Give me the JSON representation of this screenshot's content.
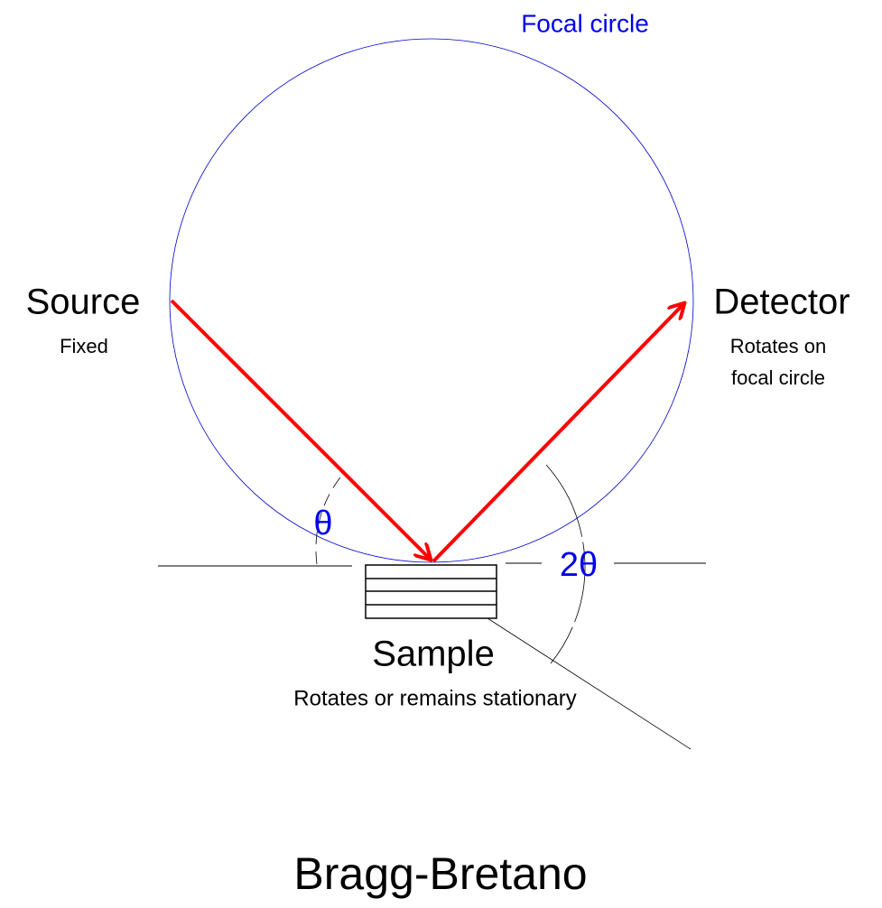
{
  "labels": {
    "focal_circle": "Focal circle",
    "source": "Source",
    "source_note": "Fixed",
    "detector": "Detector",
    "detector_note": [
      "Rotates on",
      "focal circle"
    ],
    "theta": "θ",
    "two_theta": "2θ",
    "sample": "Sample",
    "sample_note": "Rotates or remains stationary",
    "title": "Bragg-Bretano"
  }
}
